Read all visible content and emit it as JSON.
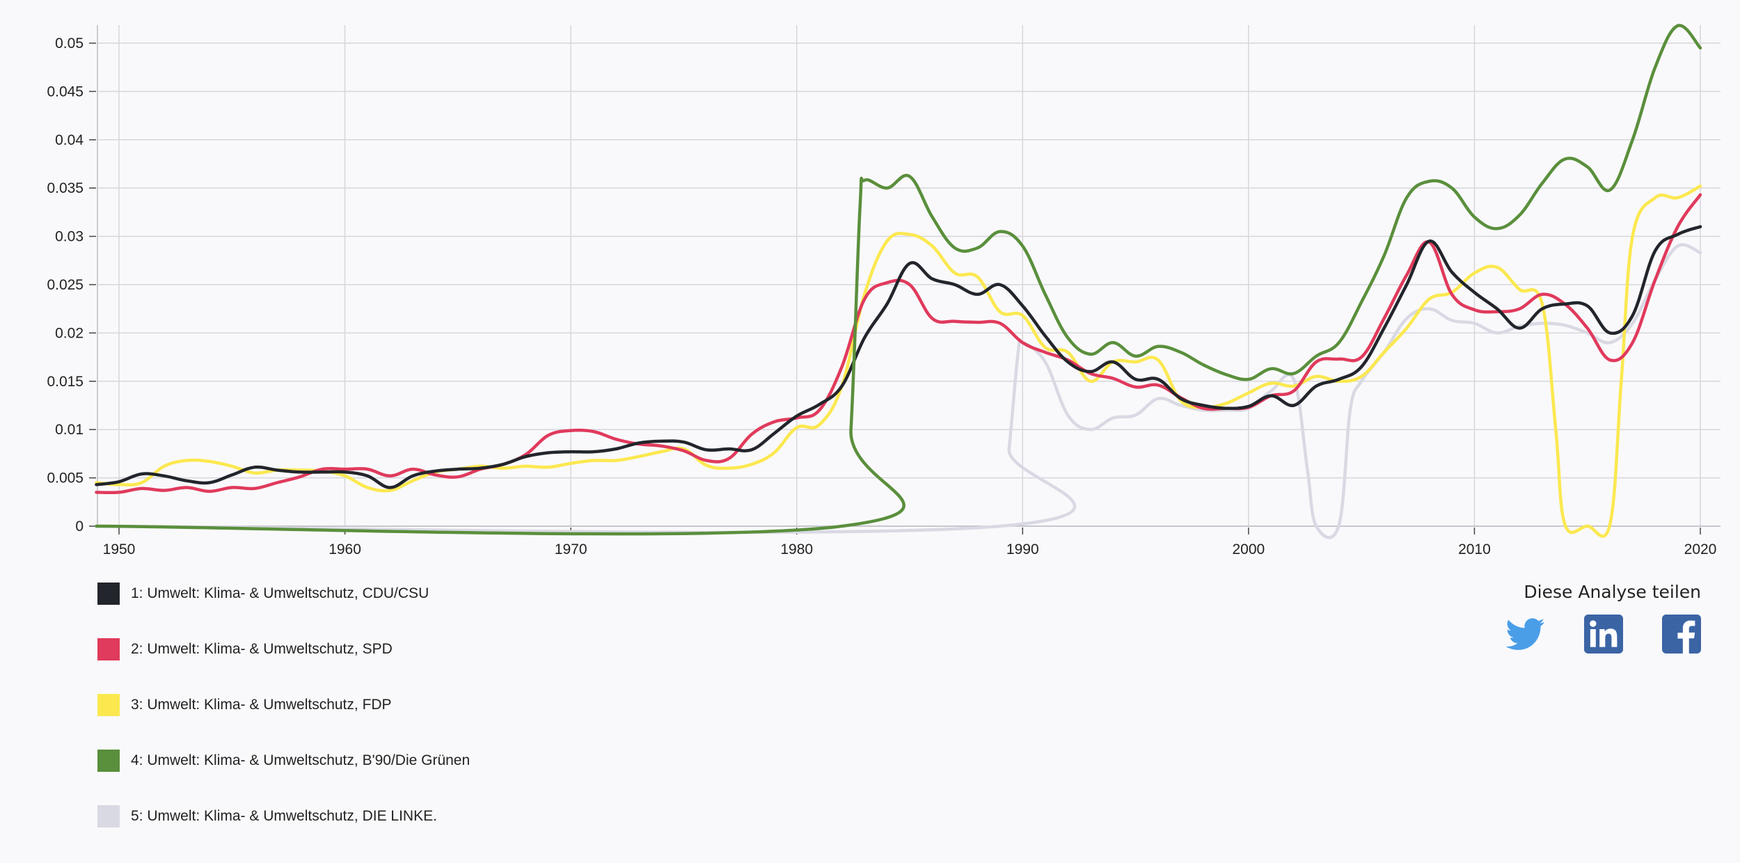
{
  "chart_data": {
    "type": "line",
    "title": "",
    "xlabel": "",
    "ylabel": "",
    "xlim": [
      1949,
      2020
    ],
    "ylim": [
      0,
      0.052
    ],
    "grid": true,
    "x_ticks": [
      "1950",
      "1960",
      "1970",
      "1980",
      "1990",
      "2000",
      "2010",
      "2020"
    ],
    "y_ticks": [
      "0",
      "0.005",
      "0.01",
      "0.015",
      "0.02",
      "0.025",
      "0.03",
      "0.035",
      "0.04",
      "0.045",
      "0.05"
    ],
    "legend_position": "bottom-left",
    "series": [
      {
        "name": "1: Umwelt: Klima- & Umweltschutz, CDU/CSU",
        "color": "#22252b",
        "points": [
          [
            1949,
            0.0043
          ],
          [
            1950,
            0.0046
          ],
          [
            1951,
            0.0054
          ],
          [
            1952,
            0.0052
          ],
          [
            1953,
            0.0047
          ],
          [
            1954,
            0.0045
          ],
          [
            1955,
            0.0053
          ],
          [
            1956,
            0.0061
          ],
          [
            1957,
            0.0058
          ],
          [
            1958,
            0.0056
          ],
          [
            1959,
            0.0056
          ],
          [
            1960,
            0.0056
          ],
          [
            1961,
            0.0052
          ],
          [
            1962,
            0.004
          ],
          [
            1963,
            0.0052
          ],
          [
            1964,
            0.0057
          ],
          [
            1965,
            0.0059
          ],
          [
            1966,
            0.006
          ],
          [
            1967,
            0.0064
          ],
          [
            1968,
            0.0072
          ],
          [
            1969,
            0.0076
          ],
          [
            1970,
            0.0077
          ],
          [
            1971,
            0.0077
          ],
          [
            1972,
            0.008
          ],
          [
            1973,
            0.0086
          ],
          [
            1974,
            0.0088
          ],
          [
            1975,
            0.0087
          ],
          [
            1976,
            0.0079
          ],
          [
            1977,
            0.008
          ],
          [
            1978,
            0.0079
          ],
          [
            1979,
            0.0096
          ],
          [
            1980,
            0.0114
          ],
          [
            1981,
            0.0126
          ],
          [
            1982,
            0.0145
          ],
          [
            1983,
            0.0195
          ],
          [
            1984,
            0.023
          ],
          [
            1985,
            0.0272
          ],
          [
            1986,
            0.0256
          ],
          [
            1987,
            0.025
          ],
          [
            1988,
            0.024
          ],
          [
            1989,
            0.025
          ],
          [
            1990,
            0.0228
          ],
          [
            1991,
            0.0197
          ],
          [
            1992,
            0.017
          ],
          [
            1993,
            0.016
          ],
          [
            1994,
            0.017
          ],
          [
            1995,
            0.0152
          ],
          [
            1996,
            0.0152
          ],
          [
            1997,
            0.0132
          ],
          [
            1998,
            0.0125
          ],
          [
            1999,
            0.0122
          ],
          [
            2000,
            0.0124
          ],
          [
            2001,
            0.0135
          ],
          [
            2002,
            0.0125
          ],
          [
            2003,
            0.0145
          ],
          [
            2004,
            0.0152
          ],
          [
            2005,
            0.0165
          ],
          [
            2006,
            0.0205
          ],
          [
            2007,
            0.025
          ],
          [
            2008,
            0.0295
          ],
          [
            2009,
            0.0263
          ],
          [
            2010,
            0.0242
          ],
          [
            2011,
            0.0225
          ],
          [
            2012,
            0.0205
          ],
          [
            2013,
            0.0225
          ],
          [
            2014,
            0.023
          ],
          [
            2015,
            0.0228
          ],
          [
            2016,
            0.02
          ],
          [
            2017,
            0.0218
          ],
          [
            2018,
            0.0285
          ],
          [
            2019,
            0.0302
          ],
          [
            2020,
            0.031
          ]
        ]
      },
      {
        "name": "2: Umwelt: Klima- & Umweltschutz, SPD",
        "color": "#e03a5c",
        "points": [
          [
            1949,
            0.0035
          ],
          [
            1950,
            0.0035
          ],
          [
            1951,
            0.0039
          ],
          [
            1952,
            0.0037
          ],
          [
            1953,
            0.004
          ],
          [
            1954,
            0.0036
          ],
          [
            1955,
            0.004
          ],
          [
            1956,
            0.0039
          ],
          [
            1957,
            0.0045
          ],
          [
            1958,
            0.0051
          ],
          [
            1959,
            0.0059
          ],
          [
            1960,
            0.0059
          ],
          [
            1961,
            0.0059
          ],
          [
            1962,
            0.0052
          ],
          [
            1963,
            0.0059
          ],
          [
            1964,
            0.0053
          ],
          [
            1965,
            0.0051
          ],
          [
            1966,
            0.0059
          ],
          [
            1967,
            0.0064
          ],
          [
            1968,
            0.0074
          ],
          [
            1969,
            0.0094
          ],
          [
            1970,
            0.0099
          ],
          [
            1971,
            0.0098
          ],
          [
            1972,
            0.009
          ],
          [
            1973,
            0.0085
          ],
          [
            1974,
            0.0083
          ],
          [
            1975,
            0.0078
          ],
          [
            1976,
            0.0068
          ],
          [
            1977,
            0.007
          ],
          [
            1978,
            0.0095
          ],
          [
            1979,
            0.0108
          ],
          [
            1980,
            0.0112
          ],
          [
            1981,
            0.012
          ],
          [
            1982,
            0.0165
          ],
          [
            1983,
            0.0235
          ],
          [
            1984,
            0.0252
          ],
          [
            1985,
            0.025
          ],
          [
            1986,
            0.0215
          ],
          [
            1987,
            0.0212
          ],
          [
            1988,
            0.0211
          ],
          [
            1989,
            0.021
          ],
          [
            1990,
            0.019
          ],
          [
            1991,
            0.018
          ],
          [
            1992,
            0.0172
          ],
          [
            1993,
            0.0158
          ],
          [
            1994,
            0.0153
          ],
          [
            1995,
            0.0144
          ],
          [
            1996,
            0.0146
          ],
          [
            1997,
            0.0133
          ],
          [
            1998,
            0.0122
          ],
          [
            1999,
            0.0122
          ],
          [
            2000,
            0.0123
          ],
          [
            2001,
            0.0135
          ],
          [
            2002,
            0.014
          ],
          [
            2003,
            0.017
          ],
          [
            2004,
            0.0173
          ],
          [
            2005,
            0.0175
          ],
          [
            2006,
            0.0215
          ],
          [
            2007,
            0.026
          ],
          [
            2008,
            0.0294
          ],
          [
            2009,
            0.024
          ],
          [
            2010,
            0.0224
          ],
          [
            2011,
            0.0222
          ],
          [
            2012,
            0.0225
          ],
          [
            2013,
            0.024
          ],
          [
            2014,
            0.023
          ],
          [
            2015,
            0.0205
          ],
          [
            2016,
            0.0172
          ],
          [
            2017,
            0.019
          ],
          [
            2018,
            0.0255
          ],
          [
            2019,
            0.031
          ],
          [
            2020,
            0.0343
          ]
        ]
      },
      {
        "name": "3: Umwelt: Klima- & Umweltschutz, FDP",
        "color": "#fbe84f",
        "points": [
          [
            1949,
            0.0045
          ],
          [
            1950,
            0.0043
          ],
          [
            1951,
            0.0045
          ],
          [
            1952,
            0.0062
          ],
          [
            1953,
            0.0068
          ],
          [
            1954,
            0.0067
          ],
          [
            1955,
            0.0062
          ],
          [
            1956,
            0.0055
          ],
          [
            1957,
            0.0058
          ],
          [
            1958,
            0.0058
          ],
          [
            1959,
            0.0057
          ],
          [
            1960,
            0.0052
          ],
          [
            1961,
            0.004
          ],
          [
            1962,
            0.0037
          ],
          [
            1963,
            0.0047
          ],
          [
            1964,
            0.0056
          ],
          [
            1965,
            0.0059
          ],
          [
            1966,
            0.0062
          ],
          [
            1967,
            0.006
          ],
          [
            1968,
            0.0062
          ],
          [
            1969,
            0.0061
          ],
          [
            1970,
            0.0065
          ],
          [
            1971,
            0.0068
          ],
          [
            1972,
            0.0068
          ],
          [
            1973,
            0.0072
          ],
          [
            1974,
            0.0077
          ],
          [
            1975,
            0.008
          ],
          [
            1976,
            0.0063
          ],
          [
            1977,
            0.006
          ],
          [
            1978,
            0.0064
          ],
          [
            1979,
            0.0076
          ],
          [
            1980,
            0.0102
          ],
          [
            1981,
            0.0105
          ],
          [
            1982,
            0.0145
          ],
          [
            1983,
            0.024
          ],
          [
            1984,
            0.0295
          ],
          [
            1985,
            0.0302
          ],
          [
            1986,
            0.029
          ],
          [
            1987,
            0.0262
          ],
          [
            1988,
            0.0258
          ],
          [
            1989,
            0.0222
          ],
          [
            1990,
            0.0218
          ],
          [
            1991,
            0.0185
          ],
          [
            1992,
            0.018
          ],
          [
            1993,
            0.015
          ],
          [
            1994,
            0.017
          ],
          [
            1995,
            0.017
          ],
          [
            1996,
            0.0172
          ],
          [
            1997,
            0.013
          ],
          [
            1998,
            0.0123
          ],
          [
            1999,
            0.0127
          ],
          [
            2000,
            0.0138
          ],
          [
            2001,
            0.0148
          ],
          [
            2002,
            0.0145
          ],
          [
            2003,
            0.0155
          ],
          [
            2004,
            0.015
          ],
          [
            2005,
            0.0155
          ],
          [
            2006,
            0.018
          ],
          [
            2007,
            0.0205
          ],
          [
            2008,
            0.0235
          ],
          [
            2009,
            0.0242
          ],
          [
            2010,
            0.0262
          ],
          [
            2011,
            0.0268
          ],
          [
            2012,
            0.0245
          ],
          [
            2013,
            0.023
          ],
          [
            2013.6,
            0.01
          ],
          [
            2014,
            0.0002
          ],
          [
            2015,
            0.0
          ],
          [
            2016,
            0.0002
          ],
          [
            2016.5,
            0.015
          ],
          [
            2017,
            0.03
          ],
          [
            2018,
            0.034
          ],
          [
            2019,
            0.034
          ],
          [
            2020,
            0.0352
          ]
        ]
      },
      {
        "name": "4: Umwelt: Klima- & Umweltschutz, B'90/Die Grünen",
        "color": "#5a8f3c",
        "points": [
          [
            1949,
            0
          ],
          [
            1982,
            0
          ],
          [
            1982.4,
            0.01
          ],
          [
            1982.8,
            0.033
          ],
          [
            1983,
            0.0358
          ],
          [
            1984,
            0.035
          ],
          [
            1985,
            0.0362
          ],
          [
            1986,
            0.032
          ],
          [
            1987,
            0.0288
          ],
          [
            1988,
            0.0288
          ],
          [
            1989,
            0.0305
          ],
          [
            1990,
            0.029
          ],
          [
            1991,
            0.024
          ],
          [
            1992,
            0.0195
          ],
          [
            1993,
            0.0178
          ],
          [
            1994,
            0.019
          ],
          [
            1995,
            0.0176
          ],
          [
            1996,
            0.0186
          ],
          [
            1997,
            0.018
          ],
          [
            1998,
            0.0167
          ],
          [
            1999,
            0.0157
          ],
          [
            2000,
            0.0152
          ],
          [
            2001,
            0.0163
          ],
          [
            2002,
            0.0158
          ],
          [
            2003,
            0.0176
          ],
          [
            2004,
            0.019
          ],
          [
            2005,
            0.0232
          ],
          [
            2006,
            0.028
          ],
          [
            2007,
            0.034
          ],
          [
            2008,
            0.0357
          ],
          [
            2009,
            0.035
          ],
          [
            2010,
            0.032
          ],
          [
            2011,
            0.0308
          ],
          [
            2012,
            0.0322
          ],
          [
            2013,
            0.0355
          ],
          [
            2014,
            0.038
          ],
          [
            2015,
            0.0372
          ],
          [
            2016,
            0.0348
          ],
          [
            2017,
            0.04
          ],
          [
            2018,
            0.0475
          ],
          [
            2019,
            0.0518
          ],
          [
            2020,
            0.0495
          ]
        ]
      },
      {
        "name": "5: Umwelt: Klima- & Umweltschutz, DIE LINKE.",
        "color": "#d9d9e4",
        "points": [
          [
            1949,
            0
          ],
          [
            1989,
            0
          ],
          [
            1989.4,
            0.008
          ],
          [
            1989.8,
            0.018
          ],
          [
            1990,
            0.019
          ],
          [
            1991,
            0.017
          ],
          [
            1992,
            0.0115
          ],
          [
            1993,
            0.01
          ],
          [
            1994,
            0.0112
          ],
          [
            1995,
            0.0115
          ],
          [
            1996,
            0.0132
          ],
          [
            1997,
            0.0125
          ],
          [
            1998,
            0.012
          ],
          [
            1999,
            0.012
          ],
          [
            2000,
            0.0122
          ],
          [
            2001,
            0.014
          ],
          [
            2002,
            0.0152
          ],
          [
            2002.6,
            0.006
          ],
          [
            2003,
            0.0
          ],
          [
            2004,
            0.0001
          ],
          [
            2004.5,
            0.012
          ],
          [
            2005,
            0.015
          ],
          [
            2006,
            0.018
          ],
          [
            2007,
            0.0215
          ],
          [
            2008,
            0.0225
          ],
          [
            2009,
            0.0213
          ],
          [
            2010,
            0.021
          ],
          [
            2011,
            0.02
          ],
          [
            2012,
            0.0207
          ],
          [
            2013,
            0.021
          ],
          [
            2014,
            0.0208
          ],
          [
            2015,
            0.02
          ],
          [
            2016,
            0.019
          ],
          [
            2017,
            0.021
          ],
          [
            2018,
            0.0255
          ],
          [
            2019,
            0.029
          ],
          [
            2020,
            0.0283
          ]
        ]
      }
    ]
  },
  "share": {
    "title": "Diese Analyse teilen",
    "icons": [
      "twitter-icon",
      "linkedin-icon",
      "facebook-icon"
    ],
    "colors": {
      "twitter": "#4a9ee8",
      "linkedin": "#3b64a5",
      "facebook": "#3b64a5"
    }
  }
}
